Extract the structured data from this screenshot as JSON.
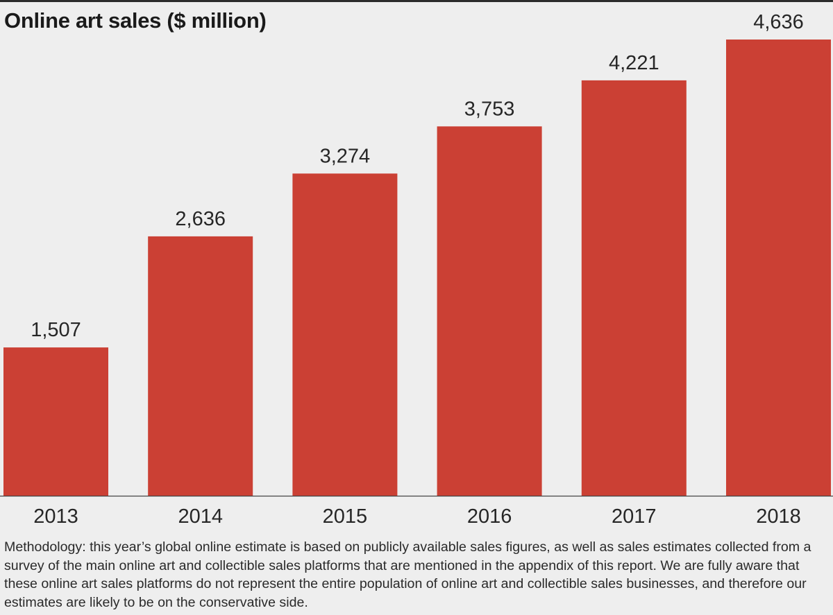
{
  "chart_data": {
    "type": "bar",
    "title": "Online art sales ($ million)",
    "xlabel": "",
    "ylabel": "",
    "categories": [
      "2013",
      "2014",
      "2015",
      "2016",
      "2017",
      "2018"
    ],
    "values": [
      1507,
      2636,
      3274,
      3753,
      4221,
      4636
    ],
    "value_labels": [
      "1,507",
      "2,636",
      "3,274",
      "3,753",
      "4,221",
      "4,636"
    ],
    "ylim": [
      0,
      5000
    ],
    "grid": false,
    "bar_color": "#cb4034"
  },
  "methodology_note": "Methodology: this year’s global online estimate is based on publicly available sales figures, as well as sales estimates collected from a survey of the main online art and collectible sales platforms that are mentioned in the appendix of this report. We are fully aware that these online art sales platforms do not represent the entire population of online art and collectible sales businesses, and therefore our estimates are likely to be on the conservative side."
}
